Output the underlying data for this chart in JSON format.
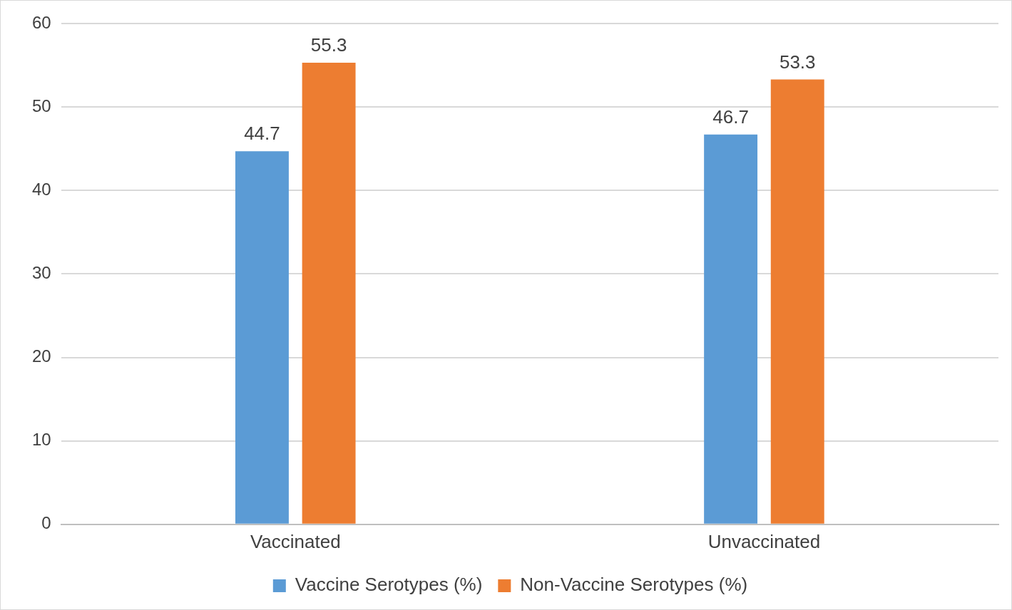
{
  "chart_data": {
    "type": "bar",
    "categories": [
      "Vaccinated",
      "Unvaccinated"
    ],
    "series": [
      {
        "name": "Vaccine Serotypes (%)",
        "color": "#5b9bd5",
        "values": [
          44.7,
          46.7
        ]
      },
      {
        "name": "Non-Vaccine Serotypes (%)",
        "color": "#ed7d31",
        "values": [
          55.3,
          53.3
        ]
      }
    ],
    "ylim": [
      0,
      60
    ],
    "yticks": [
      0,
      10,
      20,
      30,
      40,
      50,
      60
    ],
    "grid": "y",
    "legend": "bottom",
    "data_labels": true
  }
}
